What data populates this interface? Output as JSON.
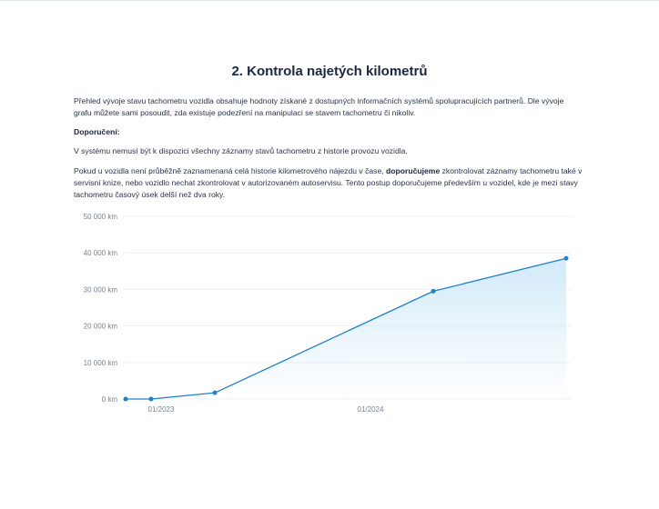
{
  "section_title": "2. Kontrola najetých kilometrů",
  "intro": "Přehled vývoje stavu tachometru vozidla obsahuje hodnoty získané z dostupných informačních systémů spolupracujících partnerů. Dle vývoje grafu můžete sami posoudit, zda existuje podezření na manipulaci se stavem tachometru či nikoliv.",
  "recommendation_heading": "Doporučení:",
  "note": "V systému nemusí být k dispozici všechny záznamy stavů tachometru z historie provozu vozidla.",
  "advice": {
    "before": "Pokud u vozidla není průběžně zaznamenaná celá historie kilometrového nájezdu v čase, ",
    "bold": "doporučujeme",
    "after": " zkontrolovat záznamy tachometru také v servisní knize, nebo vozidlo nechat zkontrolovat v autorizovaném autoservisu. Tento postup doporučujeme především u vozidel, kde je mezi stavy tachometru časový úsek delší než dva roky."
  },
  "colors": {
    "line": "#1f7fd0",
    "fill": "#cfe9f8",
    "grid": "#eef0f3"
  },
  "chart_data": {
    "type": "area",
    "x": [
      "2022-11",
      "2022-12",
      "2023-04",
      "2024-04",
      "2024-12"
    ],
    "values": [
      0,
      0,
      1700,
      29500,
      38500
    ],
    "ylim": [
      0,
      50000
    ],
    "yticks": [
      "0 km",
      "10 000 km",
      "20 000 km",
      "30 000 km",
      "40 000 km",
      "50 000 km"
    ],
    "ytick_values": [
      0,
      10000,
      20000,
      30000,
      40000,
      50000
    ],
    "xticks": [
      "01/2023",
      "01/2024"
    ],
    "xtick_values": [
      "2023-01",
      "2024-01"
    ],
    "grid": true
  }
}
